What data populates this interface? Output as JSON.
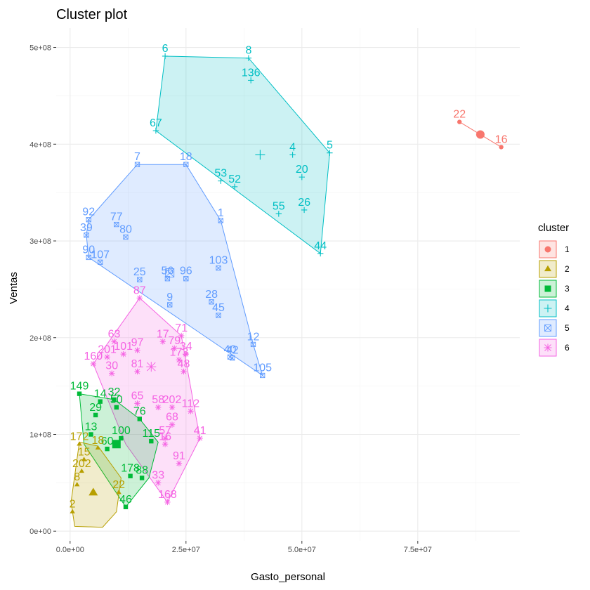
{
  "chart_data": {
    "type": "scatter",
    "title": "Cluster plot",
    "xlabel": "Gasto_personal",
    "ylabel": "Ventas",
    "xlim": [
      -3000000,
      97000000
    ],
    "ylim": [
      -10000000,
      520000000
    ],
    "x_ticks": [
      {
        "value": 0,
        "label": "0.0e+00"
      },
      {
        "value": 25000000,
        "label": "2.5e+07"
      },
      {
        "value": 50000000,
        "label": "5.0e+07"
      },
      {
        "value": 75000000,
        "label": "7.5e+07"
      }
    ],
    "y_ticks": [
      {
        "value": 0,
        "label": "0e+00"
      },
      {
        "value": 100000000,
        "label": "1e+08"
      },
      {
        "value": 200000000,
        "label": "2e+08"
      },
      {
        "value": 300000000,
        "label": "3e+08"
      },
      {
        "value": 400000000,
        "label": "4e+08"
      },
      {
        "value": 500000000,
        "label": "5e+08"
      }
    ],
    "grid": true,
    "legend": {
      "title": "cluster",
      "placement": "right",
      "labels": [
        "1",
        "2",
        "3",
        "4",
        "5",
        "6"
      ]
    },
    "colors": {
      "1": "#F8766D",
      "2": "#B79F00",
      "3": "#00BA38",
      "4": "#00BFC4",
      "5": "#619CFF",
      "6": "#F564E3"
    },
    "clusters": [
      {
        "id": "1",
        "shape": "circle",
        "points": [
          {
            "label": "22",
            "x": 84000000,
            "y": 423000000
          },
          {
            "label": "16",
            "x": 93000000,
            "y": 397000000
          }
        ],
        "hull": [
          [
            84000000,
            423000000
          ],
          [
            93000000,
            397000000
          ]
        ],
        "center": [
          88500000,
          410000000
        ]
      },
      {
        "id": "4",
        "shape": "plus",
        "points": [
          {
            "label": "6",
            "x": 20500000,
            "y": 491000000
          },
          {
            "label": "8",
            "x": 38500000,
            "y": 489000000
          },
          {
            "label": "136",
            "x": 39000000,
            "y": 466000000
          },
          {
            "label": "67",
            "x": 18500000,
            "y": 414000000
          },
          {
            "label": "5",
            "x": 56000000,
            "y": 391000000
          },
          {
            "label": "4",
            "x": 48000000,
            "y": 389000000
          },
          {
            "label": "20",
            "x": 50000000,
            "y": 366000000
          },
          {
            "label": "53",
            "x": 32500000,
            "y": 362000000
          },
          {
            "label": "52",
            "x": 35500000,
            "y": 356000000
          },
          {
            "label": "55",
            "x": 45000000,
            "y": 328000000
          },
          {
            "label": "26",
            "x": 50500000,
            "y": 332000000
          },
          {
            "label": "44",
            "x": 54000000,
            "y": 287000000
          }
        ],
        "hull": [
          [
            20500000,
            491000000
          ],
          [
            38500000,
            489000000
          ],
          [
            56000000,
            391000000
          ],
          [
            54000000,
            287000000
          ],
          [
            18500000,
            414000000
          ]
        ],
        "center": [
          41000000,
          389000000
        ]
      },
      {
        "id": "5",
        "shape": "boxx",
        "points": [
          {
            "label": "7",
            "x": 14500000,
            "y": 379000000
          },
          {
            "label": "18",
            "x": 25000000,
            "y": 379000000
          },
          {
            "label": "92",
            "x": 4000000,
            "y": 322000000
          },
          {
            "label": "77",
            "x": 10000000,
            "y": 317000000
          },
          {
            "label": "39",
            "x": 3500000,
            "y": 306000000
          },
          {
            "label": "80",
            "x": 12000000,
            "y": 304000000
          },
          {
            "label": "1",
            "x": 32500000,
            "y": 321000000
          },
          {
            "label": "90",
            "x": 4000000,
            "y": 283000000
          },
          {
            "label": "107",
            "x": 6500000,
            "y": 278000000
          },
          {
            "label": "103",
            "x": 32000000,
            "y": 272000000
          },
          {
            "label": "25",
            "x": 15000000,
            "y": 260000000
          },
          {
            "label": "56",
            "x": 21000000,
            "y": 261000000
          },
          {
            "label": "96",
            "x": 25000000,
            "y": 261000000
          },
          {
            "label": "9",
            "x": 21500000,
            "y": 234000000
          },
          {
            "label": "28",
            "x": 30500000,
            "y": 237000000
          },
          {
            "label": "45",
            "x": 32000000,
            "y": 223000000
          },
          {
            "label": "12",
            "x": 39500000,
            "y": 193000000
          },
          {
            "label": "40",
            "x": 34500000,
            "y": 180000000
          },
          {
            "label": "42",
            "x": 35000000,
            "y": 179000000
          },
          {
            "label": "105",
            "x": 41500000,
            "y": 161000000
          }
        ],
        "hull": [
          [
            14500000,
            379000000
          ],
          [
            25000000,
            379000000
          ],
          [
            32500000,
            321000000
          ],
          [
            39500000,
            193000000
          ],
          [
            41500000,
            161000000
          ],
          [
            4000000,
            283000000
          ],
          [
            3500000,
            306000000
          ],
          [
            4000000,
            322000000
          ]
        ],
        "center": [
          21500000,
          267000000
        ]
      },
      {
        "id": "6",
        "shape": "star",
        "points": [
          {
            "label": "87",
            "x": 15000000,
            "y": 241000000
          },
          {
            "label": "63",
            "x": 9500000,
            "y": 196000000
          },
          {
            "label": "17",
            "x": 20000000,
            "y": 196000000
          },
          {
            "label": "71",
            "x": 24000000,
            "y": 202000000
          },
          {
            "label": "79",
            "x": 22500000,
            "y": 189000000
          },
          {
            "label": "97",
            "x": 14500000,
            "y": 187000000
          },
          {
            "label": "101",
            "x": 11500000,
            "y": 183000000
          },
          {
            "label": "201",
            "x": 8000000,
            "y": 180000000
          },
          {
            "label": "160",
            "x": 5000000,
            "y": 173000000
          },
          {
            "label": "30",
            "x": 9000000,
            "y": 163000000
          },
          {
            "label": "34",
            "x": 25000000,
            "y": 183000000
          },
          {
            "label": "173",
            "x": 23500000,
            "y": 177000000
          },
          {
            "label": "81",
            "x": 14500000,
            "y": 165000000
          },
          {
            "label": "48",
            "x": 24500000,
            "y": 165000000
          },
          {
            "label": "65",
            "x": 14500000,
            "y": 132000000
          },
          {
            "label": "58",
            "x": 19000000,
            "y": 128000000
          },
          {
            "label": "202",
            "x": 22000000,
            "y": 128000000
          },
          {
            "label": "112",
            "x": 26000000,
            "y": 124000000
          },
          {
            "label": "68",
            "x": 22000000,
            "y": 110000000
          },
          {
            "label": "41",
            "x": 28000000,
            "y": 96000000
          },
          {
            "label": "57",
            "x": 20500000,
            "y": 96000000
          },
          {
            "label": "16",
            "x": 20500000,
            "y": 90000000
          },
          {
            "label": "91",
            "x": 23500000,
            "y": 70000000
          },
          {
            "label": "33",
            "x": 19000000,
            "y": 50000000
          },
          {
            "label": "168",
            "x": 21000000,
            "y": 30000000
          }
        ],
        "hull": [
          [
            15000000,
            241000000
          ],
          [
            24000000,
            202000000
          ],
          [
            28000000,
            96000000
          ],
          [
            21000000,
            30000000
          ],
          [
            12000000,
            90000000
          ],
          [
            5000000,
            173000000
          ]
        ],
        "center": [
          17500000,
          170000000
        ]
      },
      {
        "id": "3",
        "shape": "square",
        "points": [
          {
            "label": "149",
            "x": 2000000,
            "y": 142000000
          },
          {
            "label": "14",
            "x": 6500000,
            "y": 134000000
          },
          {
            "label": "32",
            "x": 9500000,
            "y": 136000000
          },
          {
            "label": "50",
            "x": 10000000,
            "y": 128000000
          },
          {
            "label": "29",
            "x": 5500000,
            "y": 120000000
          },
          {
            "label": "76",
            "x": 15000000,
            "y": 116000000
          },
          {
            "label": "13",
            "x": 4500000,
            "y": 100000000
          },
          {
            "label": "100",
            "x": 11000000,
            "y": 96000000
          },
          {
            "label": "115",
            "x": 17500000,
            "y": 93000000
          },
          {
            "label": "60",
            "x": 8000000,
            "y": 85000000
          },
          {
            "label": "178",
            "x": 13000000,
            "y": 57000000
          },
          {
            "label": "88",
            "x": 15500000,
            "y": 55000000
          },
          {
            "label": "46",
            "x": 12000000,
            "y": 25000000
          }
        ],
        "hull": [
          [
            2000000,
            142000000
          ],
          [
            9500000,
            136000000
          ],
          [
            15000000,
            116000000
          ],
          [
            19000000,
            92000000
          ],
          [
            17000000,
            55000000
          ],
          [
            12000000,
            25000000
          ],
          [
            3000000,
            90000000
          ]
        ],
        "center": [
          10000000,
          90000000
        ]
      },
      {
        "id": "2",
        "shape": "triangle",
        "points": [
          {
            "label": "172",
            "x": 2000000,
            "y": 90000000
          },
          {
            "label": "18",
            "x": 6000000,
            "y": 86000000
          },
          {
            "label": "15",
            "x": 3000000,
            "y": 74000000
          },
          {
            "label": "202",
            "x": 2500000,
            "y": 62000000
          },
          {
            "label": "8",
            "x": 1500000,
            "y": 48000000
          },
          {
            "label": "22",
            "x": 10500000,
            "y": 40000000
          },
          {
            "label": "2",
            "x": 500000,
            "y": 20000000
          }
        ],
        "hull": [
          [
            2000000,
            92000000
          ],
          [
            6000000,
            88000000
          ],
          [
            11000000,
            55000000
          ],
          [
            10000000,
            20000000
          ],
          [
            7000000,
            4000000
          ],
          [
            1000000,
            5000000
          ],
          [
            200000,
            30000000
          ]
        ],
        "center": [
          5000000,
          40000000
        ]
      }
    ]
  }
}
